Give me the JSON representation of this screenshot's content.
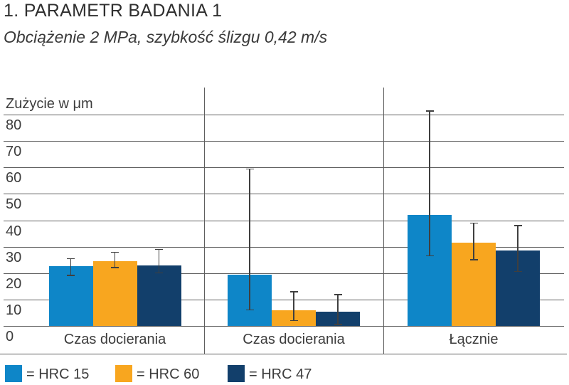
{
  "title": "1. PARAMETR BADANIA 1",
  "subtitle": "Obciążenie 2 MPa, szybkość ślizgu 0,42 m/s",
  "chart_data": {
    "type": "bar",
    "title": "1. PARAMETR BADANIA 1",
    "subtitle": "Obciążenie 2 MPa, szybkość ślizgu 0,42 m/s",
    "ylabel": "Zużycie w μm",
    "xlabel": "",
    "ylim": [
      0,
      80
    ],
    "yticks": [
      0,
      10,
      20,
      30,
      40,
      50,
      60,
      70,
      80
    ],
    "grid": true,
    "legend_position": "bottom",
    "categories": [
      "Czas docierania",
      "Czas docierania",
      "Łącznie"
    ],
    "series": [
      {
        "name": "HRC 15",
        "color": "#0e86c8",
        "values": [
          22.5,
          19.5,
          42
        ],
        "error_low": [
          19,
          6,
          26.5
        ],
        "error_high": [
          25.5,
          59.5,
          81.5
        ]
      },
      {
        "name": "HRC 60",
        "color": "#f8a61f",
        "values": [
          24.5,
          6,
          31.5
        ],
        "error_low": [
          22,
          2,
          25
        ],
        "error_high": [
          28,
          13,
          39
        ]
      },
      {
        "name": "HRC 47",
        "color": "#123f6b",
        "values": [
          23,
          5.5,
          28.5
        ],
        "error_low": [
          20,
          0.5,
          20.5
        ],
        "error_high": [
          29,
          12,
          38
        ]
      }
    ],
    "legend": [
      {
        "label": "= HRC 15",
        "color": "#0e86c8"
      },
      {
        "label": "= HRC 60",
        "color": "#f8a61f"
      },
      {
        "label": "= HRC 47",
        "color": "#123f6b"
      }
    ]
  }
}
